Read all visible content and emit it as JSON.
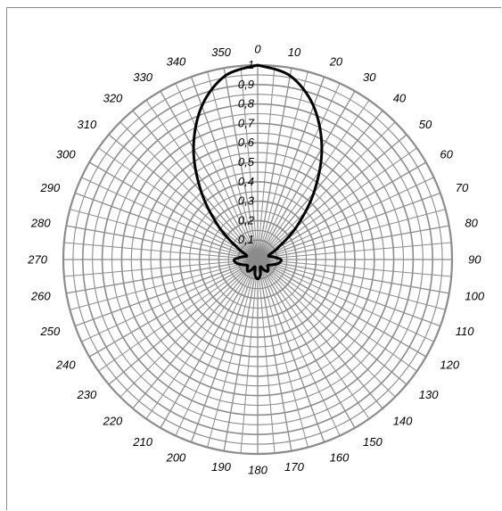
{
  "chart_data": {
    "type": "polar-line",
    "angle_unit": "degrees",
    "angle_zero": "top",
    "angle_direction": "clockwise",
    "angle_ticks": [
      0,
      10,
      20,
      30,
      40,
      50,
      60,
      70,
      80,
      90,
      100,
      110,
      120,
      130,
      140,
      150,
      160,
      170,
      180,
      190,
      200,
      210,
      220,
      230,
      240,
      250,
      260,
      270,
      280,
      290,
      300,
      310,
      320,
      330,
      340,
      350
    ],
    "angle_tick_labels": [
      "0",
      "10",
      "20",
      "30",
      "40",
      "50",
      "60",
      "70",
      "80",
      "90",
      "100",
      "110",
      "120",
      "130",
      "140",
      "150",
      "160",
      "170",
      "180",
      "190",
      "200",
      "210",
      "220",
      "230",
      "240",
      "250",
      "260",
      "270",
      "280",
      "290",
      "300",
      "310",
      "320",
      "330",
      "340",
      "350"
    ],
    "radial_range": [
      0,
      1
    ],
    "radial_ticks": [
      0.1,
      0.2,
      0.3,
      0.4,
      0.5,
      0.6,
      0.7,
      0.8,
      0.9,
      1
    ],
    "radial_tick_labels": [
      "0,1",
      "0,2",
      "0,3",
      "0,4",
      "0,5",
      "0,6",
      "0,7",
      "0,8",
      "0,9",
      "1"
    ],
    "grid": true,
    "spoke_step_degrees": 5,
    "title": "",
    "series": [
      {
        "color": "#000000",
        "theta": [
          0,
          10,
          20,
          30,
          40,
          50,
          60,
          70,
          80,
          90,
          100,
          110,
          120,
          130,
          140,
          150,
          160,
          170,
          180,
          190,
          200,
          210,
          220,
          230,
          240,
          250,
          260,
          270,
          280,
          290,
          300,
          310,
          320,
          330,
          340,
          350,
          360
        ],
        "r": [
          1.0,
          0.96,
          0.84,
          0.66,
          0.45,
          0.26,
          0.12,
          0.06,
          0.08,
          0.12,
          0.11,
          0.08,
          0.06,
          0.07,
          0.08,
          0.06,
          0.04,
          0.08,
          0.1,
          0.08,
          0.04,
          0.06,
          0.08,
          0.07,
          0.06,
          0.08,
          0.11,
          0.12,
          0.08,
          0.06,
          0.12,
          0.26,
          0.45,
          0.66,
          0.84,
          0.96,
          1.0
        ]
      }
    ],
    "colors": {
      "grid": "#8c8c8c",
      "series": "#000000"
    }
  }
}
